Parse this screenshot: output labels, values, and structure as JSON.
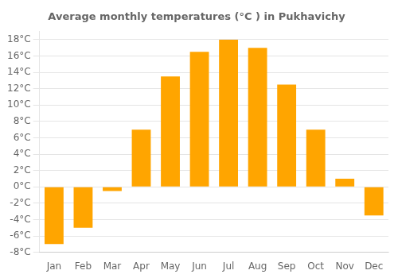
{
  "chart_data": {
    "type": "bar",
    "title": "Average monthly temperatures (°C ) in Pukhavichy",
    "categories": [
      "Jan",
      "Feb",
      "Mar",
      "Apr",
      "May",
      "Jun",
      "Jul",
      "Aug",
      "Sep",
      "Oct",
      "Nov",
      "Dec"
    ],
    "values": [
      -7.0,
      -5.0,
      -0.5,
      7.0,
      13.5,
      16.5,
      18.0,
      17.0,
      12.5,
      7.0,
      1.0,
      -3.5
    ],
    "color": "#FFA500",
    "ylim": [
      -8,
      19
    ],
    "yticks": [
      {
        "value": -8,
        "label": "-8°C"
      },
      {
        "value": -6,
        "label": "-6°C"
      },
      {
        "value": -4,
        "label": "-4°C"
      },
      {
        "value": -2,
        "label": "-2°C"
      },
      {
        "value": 0,
        "label": "0°C"
      },
      {
        "value": 2,
        "label": "2°C"
      },
      {
        "value": 4,
        "label": "4°C"
      },
      {
        "value": 6,
        "label": "6°C"
      },
      {
        "value": 8,
        "label": "8°C"
      },
      {
        "value": 10,
        "label": "10°C"
      },
      {
        "value": 12,
        "label": "12°C"
      },
      {
        "value": 14,
        "label": "14°C"
      },
      {
        "value": 16,
        "label": "16°C"
      },
      {
        "value": 18,
        "label": "18°C"
      }
    ],
    "grid": true
  }
}
